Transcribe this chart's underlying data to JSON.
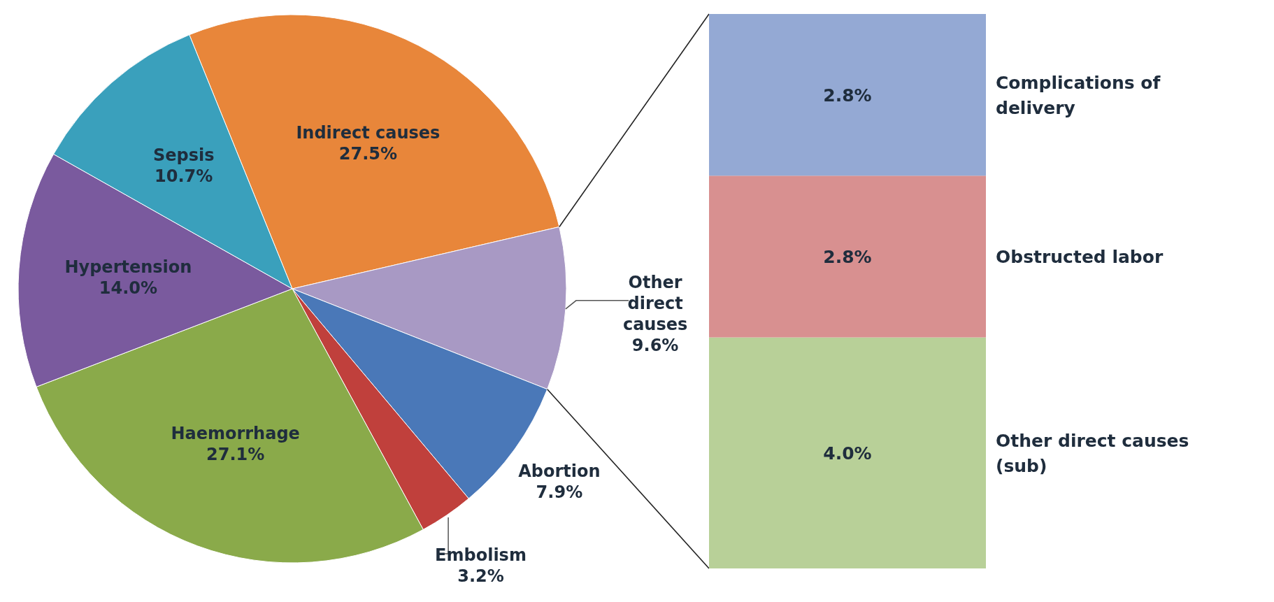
{
  "chart_data": [
    {
      "type": "pie",
      "categories": [
        "Indirect causes",
        "Other direct causes",
        "Abortion",
        "Embolism",
        "Haemorrhage",
        "Hypertension",
        "Sepsis"
      ],
      "values": [
        27.5,
        9.6,
        7.9,
        3.2,
        27.1,
        14.0,
        10.7
      ],
      "colors": [
        "#e8863a",
        "#a899c4",
        "#4a78b8",
        "#c0403c",
        "#8aaa4a",
        "#7a5a9e",
        "#3aa0bc"
      ],
      "value_labels": [
        "27.5%",
        "9.6%",
        "7.9%",
        "3.2%",
        "27.1%",
        "14.0%",
        "10.7%"
      ]
    },
    {
      "type": "bar",
      "stacked": true,
      "categories": [
        null
      ],
      "series": [
        {
          "name": "Other direct causes (sub)",
          "color": "#b8d098",
          "values": [
            4.0
          ],
          "value_labels": [
            "4.0%"
          ]
        },
        {
          "name": "Obstructed labor",
          "color": "#d89090",
          "values": [
            2.8
          ],
          "value_labels": [
            "2.8%"
          ]
        },
        {
          "name": "Complications of delivery",
          "color": "#94a9d4",
          "values": [
            2.8
          ],
          "value_labels": [
            "2.8%"
          ]
        }
      ]
    }
  ]
}
